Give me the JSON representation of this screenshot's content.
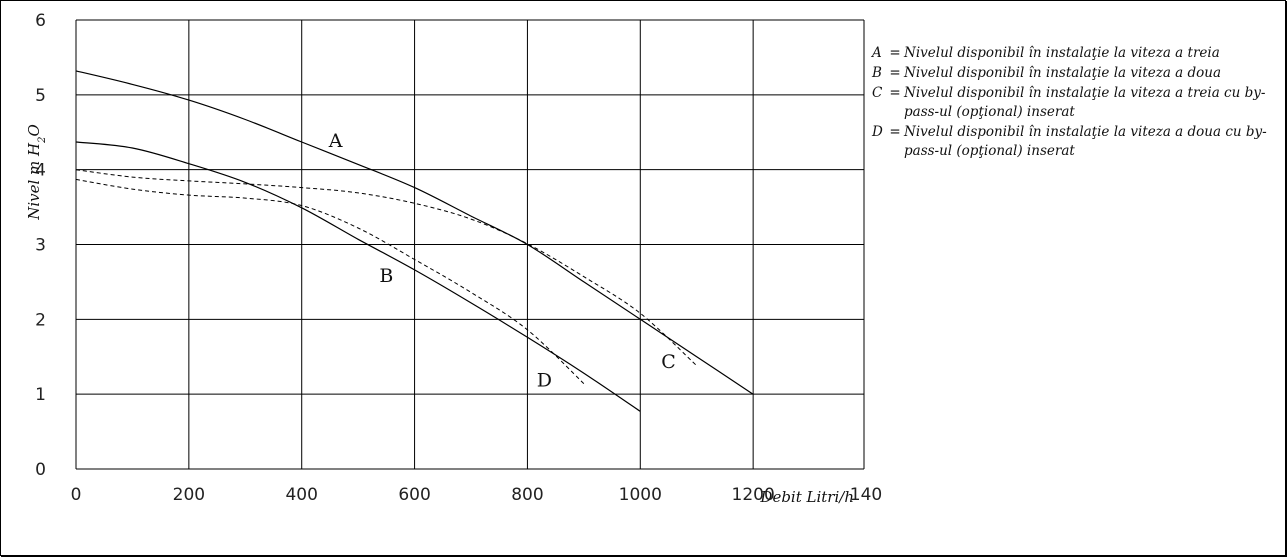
{
  "chart_data": {
    "type": "line",
    "xlabel": "Debit Litri/h",
    "ylabel": "Nivel m H2O",
    "ylabel_parts": [
      "Nivel m H",
      "2",
      "O"
    ],
    "xlim": [
      0,
      1400
    ],
    "ylim": [
      0,
      6
    ],
    "x_ticks": [
      "0",
      "200",
      "400",
      "600",
      "800",
      "1000",
      "1200",
      "140"
    ],
    "y_ticks": [
      "0",
      "1",
      "2",
      "3",
      "4",
      "5",
      "6"
    ],
    "grid": true,
    "legend_position": "right",
    "series": [
      {
        "name": "A",
        "style": "solid",
        "x": [
          0,
          100,
          200,
          300,
          400,
          500,
          600,
          700,
          800,
          900,
          1000,
          1100,
          1200
        ],
        "y": [
          5.32,
          5.14,
          4.93,
          4.67,
          4.37,
          4.07,
          3.76,
          3.38,
          3.0,
          2.5,
          2.0,
          1.5,
          1.0
        ]
      },
      {
        "name": "B",
        "style": "solid",
        "x": [
          0,
          100,
          200,
          300,
          400,
          500,
          600,
          700,
          800,
          900,
          1000
        ],
        "y": [
          4.37,
          4.29,
          4.08,
          3.83,
          3.49,
          3.07,
          2.66,
          2.22,
          1.76,
          1.28,
          0.77
        ]
      },
      {
        "name": "C",
        "style": "dashed",
        "x": [
          0,
          100,
          200,
          300,
          400,
          500,
          600,
          700,
          800,
          900,
          1000,
          1100
        ],
        "y": [
          4.0,
          3.9,
          3.85,
          3.81,
          3.76,
          3.69,
          3.55,
          3.34,
          3.01,
          2.57,
          2.08,
          1.38
        ]
      },
      {
        "name": "D",
        "style": "dashed",
        "x": [
          0,
          100,
          200,
          300,
          400,
          500,
          600,
          700,
          800,
          900
        ],
        "y": [
          3.87,
          3.74,
          3.66,
          3.62,
          3.52,
          3.22,
          2.8,
          2.36,
          1.86,
          1.14
        ]
      }
    ],
    "annotations": [
      {
        "text": "A",
        "x": 460,
        "y": 4.3
      },
      {
        "text": "B",
        "x": 550,
        "y": 2.5
      },
      {
        "text": "C",
        "x": 1050,
        "y": 1.35
      },
      {
        "text": "D",
        "x": 830,
        "y": 1.1
      }
    ],
    "legend": [
      {
        "key": "A",
        "sep": "=",
        "text": "Nivelul disponibil în instalaţie la viteza a treia"
      },
      {
        "key": "B",
        "sep": "=",
        "text": "Nivelul disponibil în instalaţie la viteza a doua"
      },
      {
        "key": "C",
        "sep": "=",
        "text": "Nivelul disponibil în instalaţie la viteza a treia cu by-pass-ul (opţional) inserat"
      },
      {
        "key": "D",
        "sep": "=",
        "text": "Nivelul disponibil în instalaţie la viteza a doua cu by-pass-ul (opţional) inserat"
      }
    ]
  }
}
